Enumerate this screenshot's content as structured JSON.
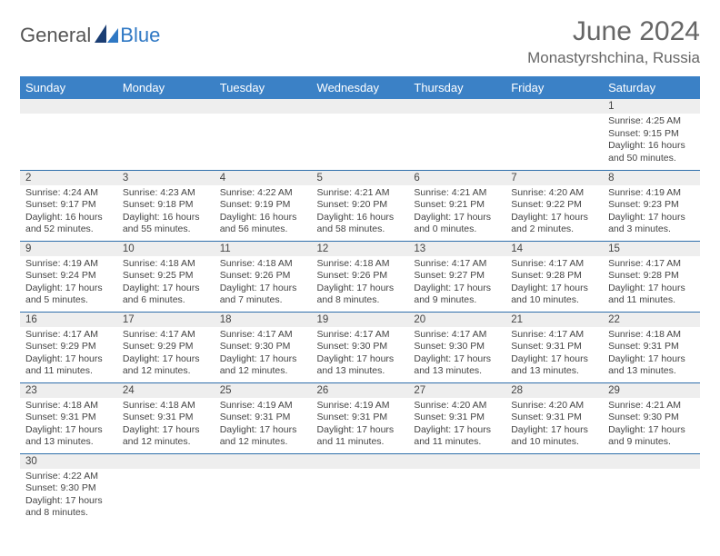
{
  "brand": {
    "part1": "General",
    "part2": "Blue"
  },
  "title": "June 2024",
  "location": "Monastyrshchina, Russia",
  "colors": {
    "header_bg": "#3b81c6",
    "header_text": "#ffffff",
    "row_divider": "#2f6fab",
    "daynum_bg": "#eeeeee",
    "body_text": "#444444",
    "title_text": "#666666",
    "brand_gray": "#555555",
    "brand_blue": "#2f78c4",
    "page_bg": "#ffffff"
  },
  "weekdays": [
    "Sunday",
    "Monday",
    "Tuesday",
    "Wednesday",
    "Thursday",
    "Friday",
    "Saturday"
  ],
  "weeks": [
    [
      null,
      null,
      null,
      null,
      null,
      null,
      {
        "n": "1",
        "sunrise": "4:25 AM",
        "sunset": "9:15 PM",
        "daylight": "16 hours and 50 minutes."
      }
    ],
    [
      {
        "n": "2",
        "sunrise": "4:24 AM",
        "sunset": "9:17 PM",
        "daylight": "16 hours and 52 minutes."
      },
      {
        "n": "3",
        "sunrise": "4:23 AM",
        "sunset": "9:18 PM",
        "daylight": "16 hours and 55 minutes."
      },
      {
        "n": "4",
        "sunrise": "4:22 AM",
        "sunset": "9:19 PM",
        "daylight": "16 hours and 56 minutes."
      },
      {
        "n": "5",
        "sunrise": "4:21 AM",
        "sunset": "9:20 PM",
        "daylight": "16 hours and 58 minutes."
      },
      {
        "n": "6",
        "sunrise": "4:21 AM",
        "sunset": "9:21 PM",
        "daylight": "17 hours and 0 minutes."
      },
      {
        "n": "7",
        "sunrise": "4:20 AM",
        "sunset": "9:22 PM",
        "daylight": "17 hours and 2 minutes."
      },
      {
        "n": "8",
        "sunrise": "4:19 AM",
        "sunset": "9:23 PM",
        "daylight": "17 hours and 3 minutes."
      }
    ],
    [
      {
        "n": "9",
        "sunrise": "4:19 AM",
        "sunset": "9:24 PM",
        "daylight": "17 hours and 5 minutes."
      },
      {
        "n": "10",
        "sunrise": "4:18 AM",
        "sunset": "9:25 PM",
        "daylight": "17 hours and 6 minutes."
      },
      {
        "n": "11",
        "sunrise": "4:18 AM",
        "sunset": "9:26 PM",
        "daylight": "17 hours and 7 minutes."
      },
      {
        "n": "12",
        "sunrise": "4:18 AM",
        "sunset": "9:26 PM",
        "daylight": "17 hours and 8 minutes."
      },
      {
        "n": "13",
        "sunrise": "4:17 AM",
        "sunset": "9:27 PM",
        "daylight": "17 hours and 9 minutes."
      },
      {
        "n": "14",
        "sunrise": "4:17 AM",
        "sunset": "9:28 PM",
        "daylight": "17 hours and 10 minutes."
      },
      {
        "n": "15",
        "sunrise": "4:17 AM",
        "sunset": "9:28 PM",
        "daylight": "17 hours and 11 minutes."
      }
    ],
    [
      {
        "n": "16",
        "sunrise": "4:17 AM",
        "sunset": "9:29 PM",
        "daylight": "17 hours and 11 minutes."
      },
      {
        "n": "17",
        "sunrise": "4:17 AM",
        "sunset": "9:29 PM",
        "daylight": "17 hours and 12 minutes."
      },
      {
        "n": "18",
        "sunrise": "4:17 AM",
        "sunset": "9:30 PM",
        "daylight": "17 hours and 12 minutes."
      },
      {
        "n": "19",
        "sunrise": "4:17 AM",
        "sunset": "9:30 PM",
        "daylight": "17 hours and 13 minutes."
      },
      {
        "n": "20",
        "sunrise": "4:17 AM",
        "sunset": "9:30 PM",
        "daylight": "17 hours and 13 minutes."
      },
      {
        "n": "21",
        "sunrise": "4:17 AM",
        "sunset": "9:31 PM",
        "daylight": "17 hours and 13 minutes."
      },
      {
        "n": "22",
        "sunrise": "4:18 AM",
        "sunset": "9:31 PM",
        "daylight": "17 hours and 13 minutes."
      }
    ],
    [
      {
        "n": "23",
        "sunrise": "4:18 AM",
        "sunset": "9:31 PM",
        "daylight": "17 hours and 13 minutes."
      },
      {
        "n": "24",
        "sunrise": "4:18 AM",
        "sunset": "9:31 PM",
        "daylight": "17 hours and 12 minutes."
      },
      {
        "n": "25",
        "sunrise": "4:19 AM",
        "sunset": "9:31 PM",
        "daylight": "17 hours and 12 minutes."
      },
      {
        "n": "26",
        "sunrise": "4:19 AM",
        "sunset": "9:31 PM",
        "daylight": "17 hours and 11 minutes."
      },
      {
        "n": "27",
        "sunrise": "4:20 AM",
        "sunset": "9:31 PM",
        "daylight": "17 hours and 11 minutes."
      },
      {
        "n": "28",
        "sunrise": "4:20 AM",
        "sunset": "9:31 PM",
        "daylight": "17 hours and 10 minutes."
      },
      {
        "n": "29",
        "sunrise": "4:21 AM",
        "sunset": "9:30 PM",
        "daylight": "17 hours and 9 minutes."
      }
    ],
    [
      {
        "n": "30",
        "sunrise": "4:22 AM",
        "sunset": "9:30 PM",
        "daylight": "17 hours and 8 minutes."
      },
      null,
      null,
      null,
      null,
      null,
      null
    ]
  ],
  "labels": {
    "sunrise": "Sunrise: ",
    "sunset": "Sunset: ",
    "daylight": "Daylight: "
  }
}
